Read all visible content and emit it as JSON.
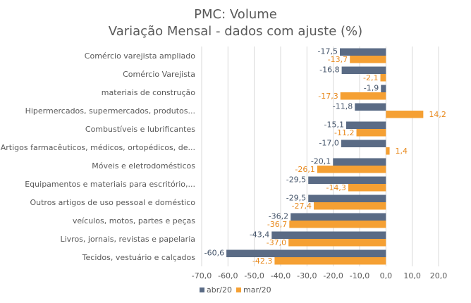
{
  "chart_data": {
    "type": "bar",
    "orientation": "horizontal",
    "title": "PMC: Volume",
    "subtitle": "Variação Mensal - dados com ajuste (%)",
    "categories": [
      "Comércio varejista ampliado",
      "Comércio Varejista",
      "materiais de construção",
      "Hipermercados, supermercados, produtos...",
      "Combustíveis e lubrificantes",
      "Artigos farmacêuticos, médicos, ortopédicos, de...",
      "Móveis e eletrodomésticos",
      "Equipamentos e materiais para escritório,...",
      "Outros artigos de uso pessoal e doméstico",
      "veículos, motos, partes e peças",
      "Livros, jornais, revistas e papelaria",
      "Tecidos, vestuário e calçados"
    ],
    "series": [
      {
        "name": "abr/20",
        "color": "#5a6b85",
        "values": [
          -17.5,
          -16.8,
          -1.9,
          -11.8,
          -15.1,
          -17.0,
          -20.1,
          -29.5,
          -29.5,
          -36.2,
          -43.4,
          -60.6
        ],
        "labels": [
          "-17,5",
          "-16,8",
          "-1,9",
          "-11,8",
          "-15,1",
          "-17,0",
          "-20,1",
          "-29,5",
          "-29,5",
          "-36,2",
          "-43,4",
          "-60,6"
        ]
      },
      {
        "name": "mar/20",
        "color": "#f5a033",
        "values": [
          -13.7,
          -2.1,
          -17.3,
          14.2,
          -11.2,
          1.4,
          -26.1,
          -14.3,
          -27.4,
          -36.7,
          -37.0,
          -42.3
        ],
        "labels": [
          "-13,7",
          "-2,1",
          "-17,3",
          "14,2",
          "-11,2",
          "1,4",
          "-26,1",
          "-14,3",
          "-27,4",
          "-36,7",
          "-37,0",
          "-42,3"
        ]
      }
    ],
    "xlim": [
      -70,
      20
    ],
    "xticks": [
      -70,
      -60,
      -50,
      -40,
      -30,
      -20,
      -10,
      0,
      10,
      20
    ],
    "xtick_labels": [
      "-70,0",
      "-60,0",
      "-50,0",
      "-40,0",
      "-30,0",
      "-20,0",
      "-10,0",
      "0,0",
      "10,0",
      "20,0"
    ],
    "grid": true,
    "legend": "bottom-left"
  }
}
